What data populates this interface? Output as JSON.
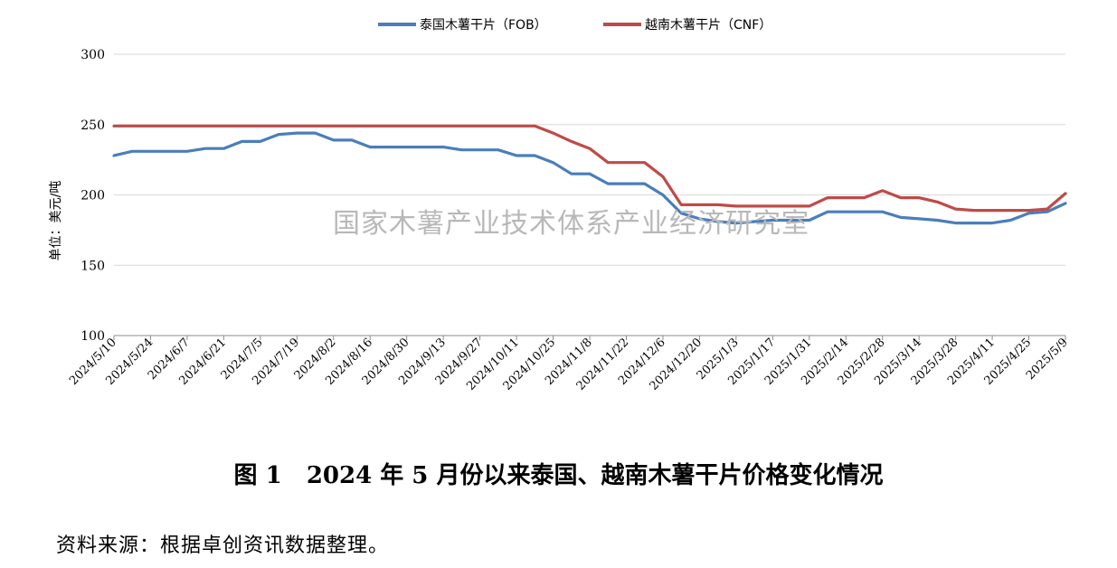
{
  "chart_data": {
    "type": "line",
    "ylabel": "单位：美元/吨",
    "ylim": [
      100,
      300
    ],
    "yticks": [
      100,
      150,
      200,
      250,
      300
    ],
    "grid": true,
    "legend_position": "top-center",
    "xtick_labels": [
      "2024/5/10",
      "2024/5/24",
      "2024/6/7",
      "2024/6/21",
      "2024/7/5",
      "2024/7/19",
      "2024/8/2",
      "2024/8/16",
      "2024/8/30",
      "2024/9/13",
      "2024/9/27",
      "2024/10/11",
      "2024/10/25",
      "2024/11/8",
      "2024/11/22",
      "2024/12/6",
      "2024/12/20",
      "2025/1/3",
      "2025/1/17",
      "2025/1/31",
      "2025/2/14",
      "2025/2/28",
      "2025/3/14",
      "2025/3/28",
      "2025/4/11",
      "2025/4/25",
      "2025/5/9"
    ],
    "x": [
      "2024/5/10",
      "2024/5/17",
      "2024/5/24",
      "2024/5/31",
      "2024/6/7",
      "2024/6/14",
      "2024/6/21",
      "2024/6/28",
      "2024/7/5",
      "2024/7/12",
      "2024/7/19",
      "2024/7/26",
      "2024/8/2",
      "2024/8/9",
      "2024/8/16",
      "2024/8/23",
      "2024/8/30",
      "2024/9/6",
      "2024/9/13",
      "2024/9/20",
      "2024/9/27",
      "2024/10/4",
      "2024/10/11",
      "2024/10/18",
      "2024/10/25",
      "2024/11/1",
      "2024/11/8",
      "2024/11/15",
      "2024/11/22",
      "2024/11/29",
      "2024/12/6",
      "2024/12/13",
      "2024/12/20",
      "2024/12/27",
      "2025/1/3",
      "2025/1/10",
      "2025/1/17",
      "2025/1/24",
      "2025/1/31",
      "2025/2/7",
      "2025/2/14",
      "2025/2/21",
      "2025/2/28",
      "2025/3/7",
      "2025/3/14",
      "2025/3/21",
      "2025/3/28",
      "2025/4/4",
      "2025/4/11",
      "2025/4/18",
      "2025/4/25",
      "2025/5/2",
      "2025/5/9"
    ],
    "series": [
      {
        "name": "泰国木薯干片（FOB）",
        "color": "#4a7ebb",
        "values": [
          228,
          231,
          231,
          231,
          231,
          233,
          233,
          238,
          238,
          243,
          244,
          244,
          239,
          239,
          234,
          234,
          234,
          234,
          234,
          232,
          232,
          232,
          228,
          228,
          223,
          215,
          215,
          208,
          208,
          208,
          200,
          187,
          183,
          181,
          180,
          181,
          182,
          182,
          182,
          188,
          188,
          188,
          188,
          184,
          183,
          182,
          180,
          180,
          180,
          182,
          187,
          188,
          194
        ]
      },
      {
        "name": "越南木薯干片（CNF）",
        "color": "#be4b48",
        "values": [
          249,
          249,
          249,
          249,
          249,
          249,
          249,
          249,
          249,
          249,
          249,
          249,
          249,
          249,
          249,
          249,
          249,
          249,
          249,
          249,
          249,
          249,
          249,
          249,
          244,
          238,
          233,
          223,
          223,
          223,
          213,
          193,
          193,
          193,
          192,
          192,
          192,
          192,
          192,
          198,
          198,
          198,
          203,
          198,
          198,
          195,
          190,
          189,
          189,
          189,
          189,
          190,
          201
        ]
      }
    ]
  },
  "watermark": "国家木薯产业技术体系产业经济研究室",
  "caption": "图 1   2024 年 5 月份以来泰国、越南木薯干片价格变化情况",
  "source": "资料来源：根据卓创资讯数据整理。"
}
